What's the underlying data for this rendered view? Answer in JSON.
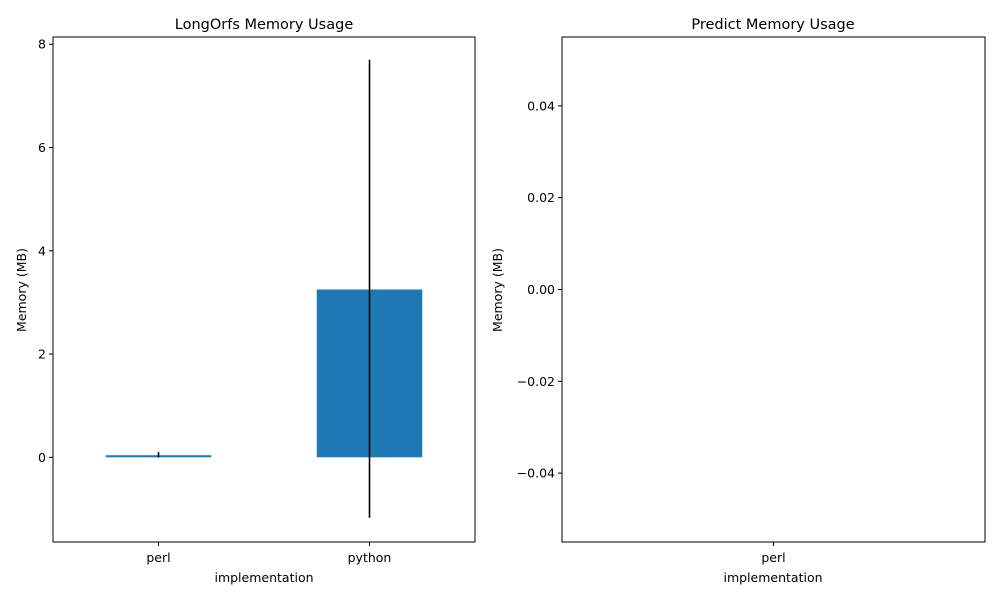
{
  "chart_data": [
    {
      "type": "bar",
      "title": "LongOrfs Memory Usage",
      "xlabel": "implementation",
      "ylabel": "Memory (MB)",
      "categories": [
        "perl",
        "python"
      ],
      "values": [
        0.04,
        3.25
      ],
      "error_low": [
        0.0,
        -1.17
      ],
      "error_high": [
        0.1,
        7.7
      ],
      "ylim": [
        -1.64,
        8.14
      ],
      "yticks": [
        0,
        2,
        4,
        6,
        8
      ],
      "ytick_labels": [
        "0",
        "2",
        "4",
        "6",
        "8"
      ],
      "bar_color": "#1f77b4",
      "error_color": "#000000",
      "grid": false
    },
    {
      "type": "bar",
      "title": "Predict Memory Usage",
      "xlabel": "implementation",
      "ylabel": "Memory (MB)",
      "categories": [
        "perl"
      ],
      "values": [
        0
      ],
      "ylim": [
        -0.055,
        0.055
      ],
      "yticks": [
        -0.04,
        -0.02,
        0.0,
        0.02,
        0.04
      ],
      "ytick_labels": [
        "−0.04",
        "−0.02",
        "0.00",
        "0.02",
        "0.04"
      ],
      "bar_color": "#1f77b4",
      "grid": false
    }
  ]
}
